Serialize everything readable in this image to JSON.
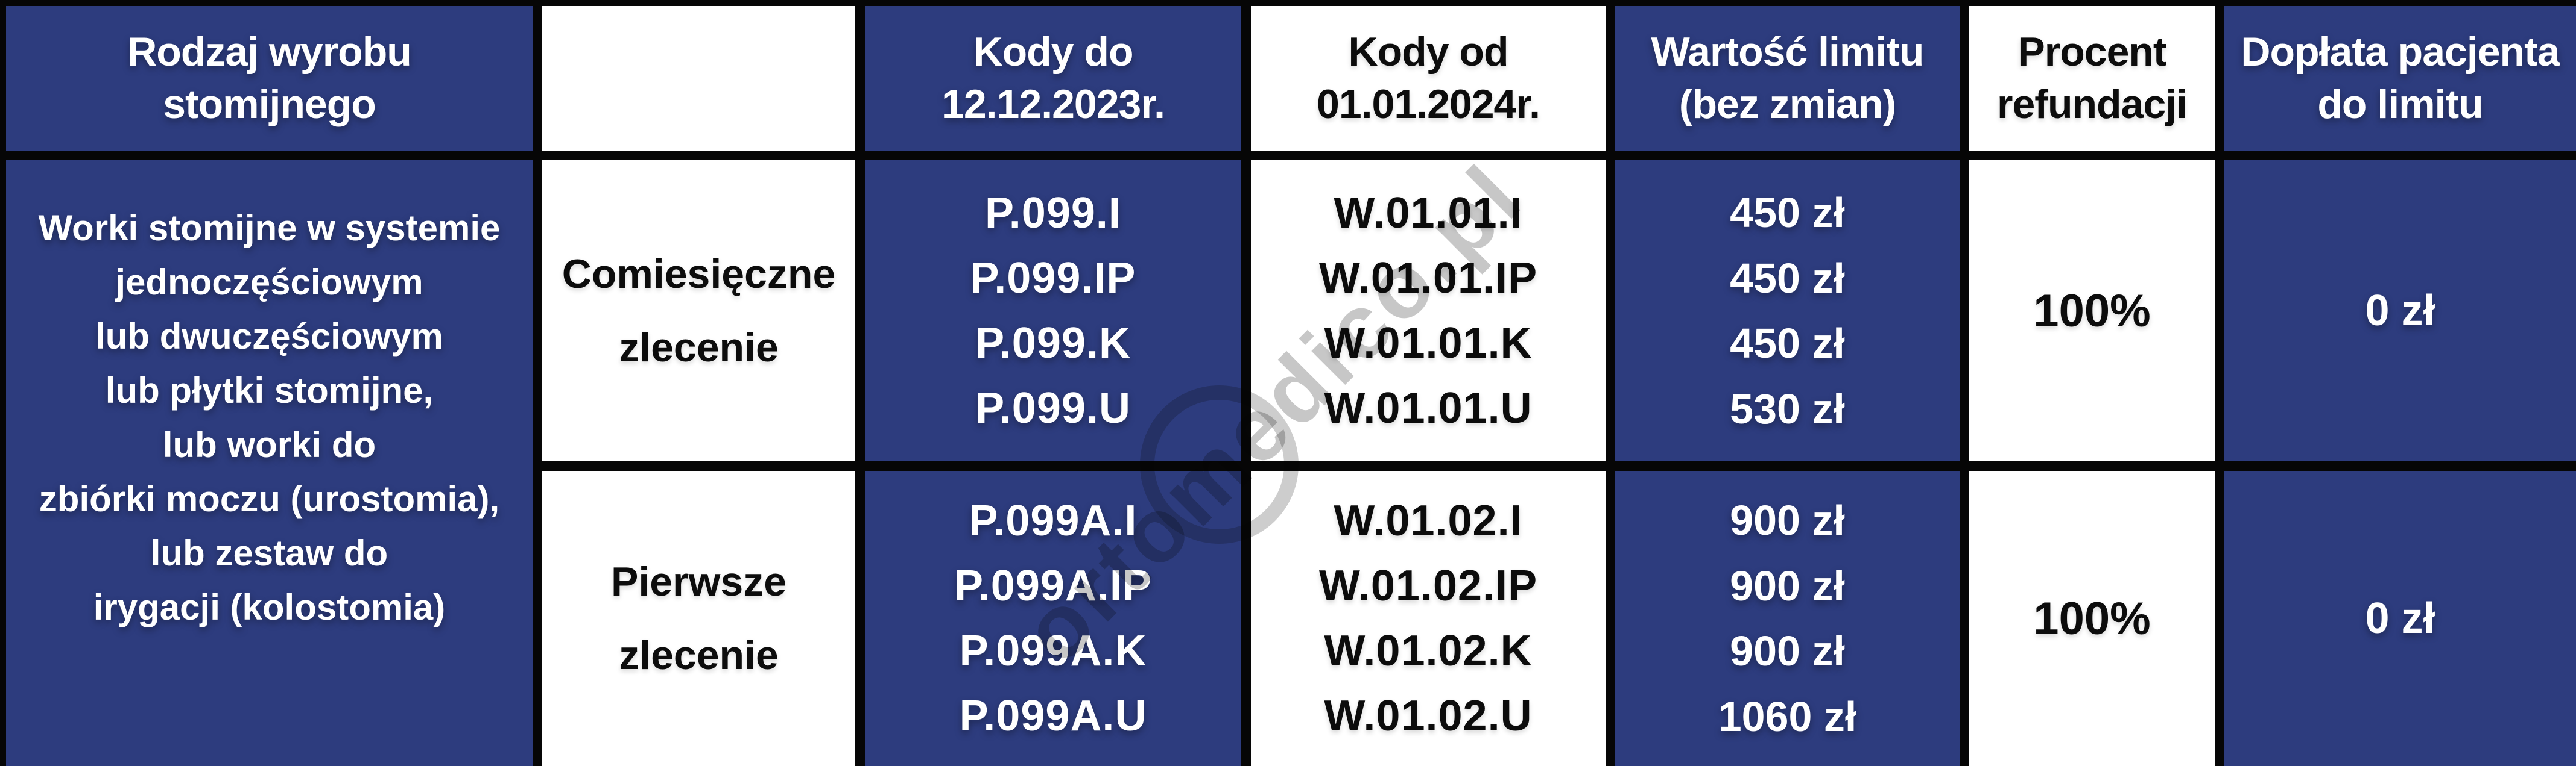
{
  "colors": {
    "navy": "#2d3c7e",
    "grid_line": "#060606",
    "white": "#ffffff",
    "text_black": "#0c0c0c",
    "watermark_gray": "#8f8f8f"
  },
  "watermark": {
    "text": "ortomedico.pl"
  },
  "table": {
    "header": [
      {
        "id": "product-type",
        "lines": [
          "Rodzaj wyrobu",
          "stomijnego"
        ]
      },
      {
        "id": "order-type",
        "lines": []
      },
      {
        "id": "codes-until",
        "lines": [
          "Kody do",
          "12.12.2023r."
        ]
      },
      {
        "id": "codes-from",
        "lines": [
          "Kody od",
          "01.01.2024r."
        ]
      },
      {
        "id": "limit-value",
        "lines": [
          "Wartość limitu",
          "(bez zmian)"
        ]
      },
      {
        "id": "refund-percent",
        "lines": [
          "Procent",
          "refundacji"
        ]
      },
      {
        "id": "patient-copay",
        "lines": [
          "Dopłata pacjenta",
          "do limitu"
        ]
      }
    ],
    "product_description": [
      "Worki stomijne w systemie",
      "jednoczęściowym",
      "lub dwuczęściowym",
      "lub płytki stomijne,",
      "lub worki do",
      "zbiórki moczu (urostomia),",
      "lub zestaw do",
      "irygacji (kolostomia)"
    ],
    "rows": [
      {
        "order_type": [
          "Comiesięczne",
          "zlecenie"
        ],
        "codes_old": [
          "P.099.I",
          "P.099.IP",
          "P.099.K",
          "P.099.U"
        ],
        "codes_new": [
          "W.01.01.I",
          "W.01.01.IP",
          "W.01.01.K",
          "W.01.01.U"
        ],
        "limit_values": [
          "450 zł",
          "450 zł",
          "450 zł",
          "530 zł"
        ],
        "refund_percent": "100%",
        "patient_copay": "0 zł"
      },
      {
        "order_type": [
          "Pierwsze",
          "zlecenie"
        ],
        "codes_old": [
          "P.099A.I",
          "P.099A.IP",
          "P.099A.K",
          "P.099A.U"
        ],
        "codes_new": [
          "W.01.02.I",
          "W.01.02.IP",
          "W.01.02.K",
          "W.01.02.U"
        ],
        "limit_values": [
          "900 zł",
          "900 zł",
          "900 zł",
          "1060 zł"
        ],
        "refund_percent": "100%",
        "patient_copay": "0 zł"
      }
    ]
  }
}
